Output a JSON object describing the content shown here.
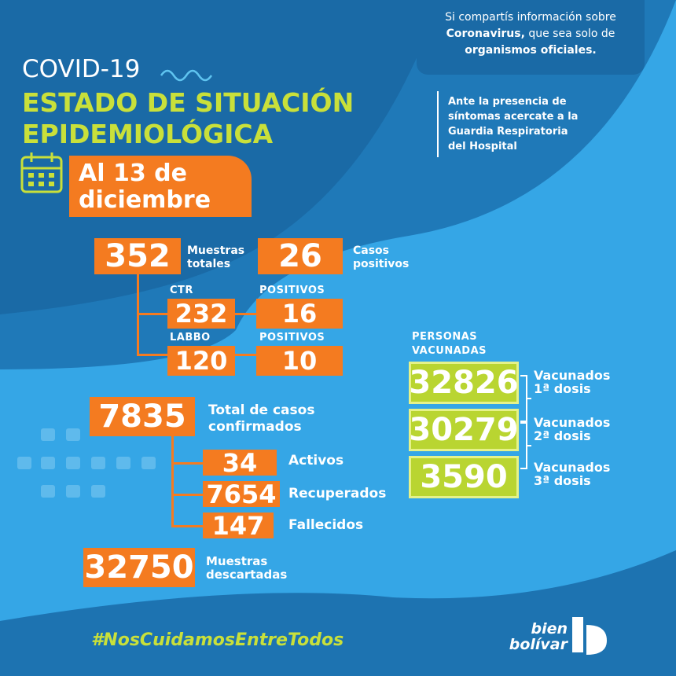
{
  "header": {
    "kicker": "COVID-19",
    "title_lines": [
      "ESTADO DE SITUACIÓN",
      "EPIDEMIOLÓGICA"
    ],
    "date_lines": [
      "Al 13 de",
      "diciembre"
    ]
  },
  "notice": {
    "line1": "Si compartís información sobre",
    "line2_bold": "Coronavirus,",
    "line2_rest": "que sea solo de",
    "line3": "organismos oficiales."
  },
  "advice": [
    "Ante la presencia de",
    "síntomas acercate a la",
    "Guardia Respiratoria",
    "del Hospital"
  ],
  "tests": {
    "total": {
      "value": 352,
      "label_lines": [
        "Muestras",
        "totales"
      ]
    },
    "positive": {
      "value": 26,
      "label_lines": [
        "Casos",
        "positivos"
      ]
    },
    "ctr": {
      "label": "CTR",
      "value": 232,
      "positive_label": "POSITIVOS",
      "positive": 16
    },
    "labbo": {
      "label": "LABBO",
      "value": 120,
      "positive_label": "POSITIVOS",
      "positive": 10
    }
  },
  "cases": {
    "total": {
      "value": 7835,
      "label_lines": [
        "Total de casos",
        "confirmados"
      ]
    },
    "breakdown": [
      {
        "value": 34,
        "label": "Activos"
      },
      {
        "value": 7654,
        "label": "Recuperados"
      },
      {
        "value": 147,
        "label": "Fallecidos"
      }
    ],
    "discarded": {
      "value": 32750,
      "label_lines": [
        "Muestras",
        "descartadas"
      ]
    }
  },
  "vaccination": {
    "title_lines": [
      "PERSONAS",
      "VACUNADAS"
    ],
    "doses": [
      {
        "value": 32826,
        "label_lines": [
          "Vacunados",
          "1ª dosis"
        ]
      },
      {
        "value": 30279,
        "label_lines": [
          "Vacunados",
          "2ª dosis"
        ]
      },
      {
        "value": 3590,
        "label_lines": [
          "Vacunados",
          "3ª dosis"
        ]
      }
    ]
  },
  "footer": {
    "hashtag": "#NosCuidamosEntreTodos",
    "logo_lines": [
      "bien",
      "bolívar"
    ]
  }
}
